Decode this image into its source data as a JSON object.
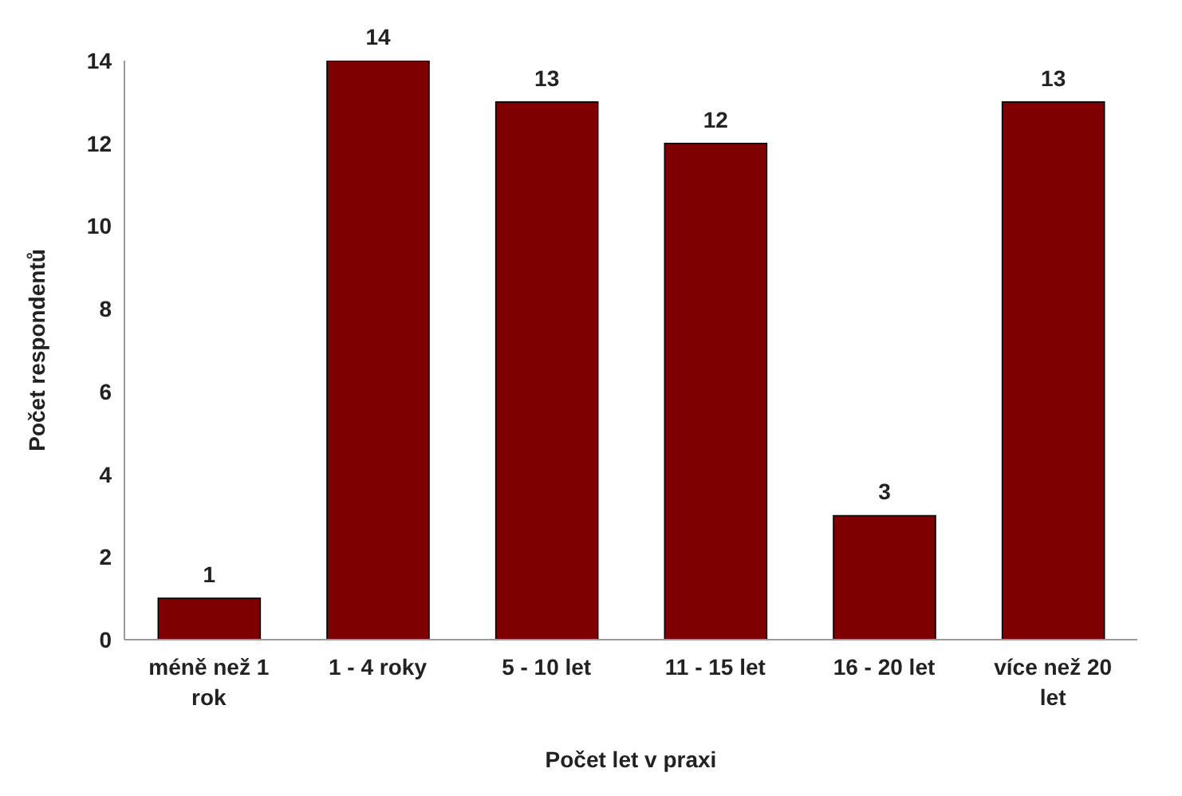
{
  "chart_data": {
    "type": "bar",
    "xlabel": "Počet let v praxi",
    "ylabel": "Počet respondentů",
    "categories": [
      "méně než 1 rok",
      "1 - 4 roky",
      "5 - 10 let",
      "11 - 15 let",
      "16 - 20 let",
      "více než 20 let"
    ],
    "values": [
      1,
      14,
      13,
      12,
      3,
      13
    ],
    "color": "#7f0000",
    "ylim": [
      0,
      14
    ],
    "yticks": [
      0,
      2,
      4,
      6,
      8,
      10,
      12,
      14
    ],
    "grid": false,
    "data_labels": true
  }
}
